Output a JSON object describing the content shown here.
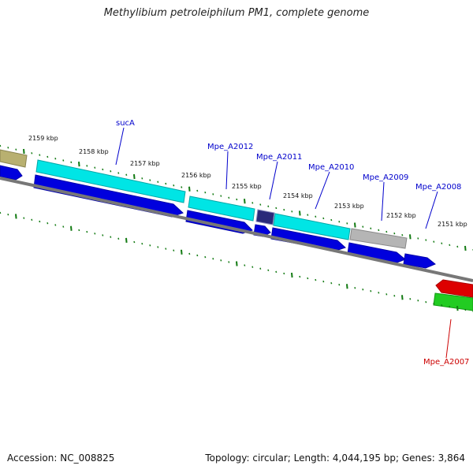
{
  "title": "Methylibium petroleiphilum PM1, complete genome",
  "footer": {
    "accession": "Accession: NC_008825",
    "summary": "Topology: circular; Length: 4,044,195 bp; Genes: 3,864"
  },
  "ticks": [
    "2159 kbp",
    "2158 kbp",
    "2157 kbp",
    "2156 kbp",
    "2155 kbp",
    "2154 kbp",
    "2153 kbp",
    "2152 kbp",
    "2151 kbp"
  ],
  "gene_labels": {
    "sucA": "sucA",
    "mpe_a2012": "Mpe_A2012",
    "mpe_a2011": "Mpe_A2011",
    "mpe_a2010": "Mpe_A2010",
    "mpe_a2009": "Mpe_A2009",
    "mpe_a2008": "Mpe_A2008",
    "mpe_a2007": "Mpe_A2007"
  },
  "colors": {
    "tick": "#127a12",
    "axis": "#777777",
    "cds": "#0000dd",
    "feature_cyan": "#00e5e5",
    "feature_grey": "#b5b5b5",
    "feature_navy": "#2a2a7a",
    "feature_olive": "#b8b070",
    "reverse_red": "#dd0000",
    "reverse_green": "#22cc22",
    "label_blue": "#0000cc",
    "label_red": "#cc0000"
  }
}
